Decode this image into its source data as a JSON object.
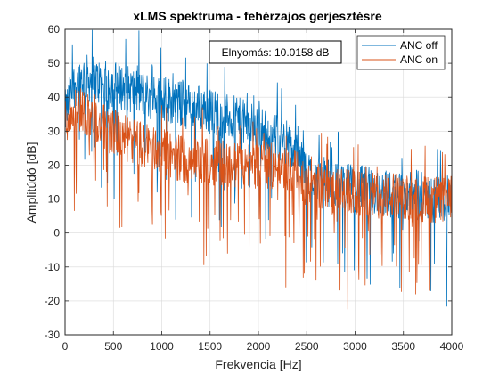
{
  "chart_data": {
    "type": "line",
    "title": "xLMS spektruma - fehérzajos gerjesztésre",
    "xlabel": "Frekvencia [Hz]",
    "ylabel": "Amplitúdó [dB]",
    "xlim": [
      0,
      4000
    ],
    "ylim": [
      -30,
      60
    ],
    "xticks": [
      "0",
      "500",
      "1000",
      "1500",
      "2000",
      "2500",
      "3000",
      "3500",
      "4000"
    ],
    "yticks": [
      "-30",
      "-20",
      "-10",
      "0",
      "10",
      "20",
      "30",
      "40",
      "50",
      "60"
    ],
    "grid": true,
    "legend_position": "top-right",
    "annotation": "Elnyomás: 10.0158 dB",
    "series": [
      {
        "name": "ANC off",
        "color": "#0072BD",
        "x": [
          0,
          100,
          200,
          300,
          400,
          500,
          600,
          700,
          800,
          900,
          1000,
          1100,
          1200,
          1300,
          1400,
          1500,
          1600,
          1700,
          1800,
          1900,
          2000,
          2100,
          2200,
          2300,
          2400,
          2500,
          2600,
          2700,
          2800,
          2900,
          3000,
          3100,
          3200,
          3300,
          3400,
          3500,
          3600,
          3700,
          3800,
          3900,
          4000
        ],
        "values": [
          35,
          44,
          46,
          45,
          44,
          44,
          43,
          42,
          41,
          40,
          40,
          39,
          38,
          37,
          37,
          36,
          35,
          34,
          33,
          32,
          31,
          29,
          28,
          27,
          22,
          18,
          16,
          15,
          14,
          14,
          13,
          13,
          12,
          12,
          11,
          11,
          11,
          10,
          10,
          10,
          10
        ]
      },
      {
        "name": "ANC on",
        "color": "#D95319",
        "x": [
          0,
          100,
          200,
          300,
          400,
          500,
          600,
          700,
          800,
          900,
          1000,
          1100,
          1200,
          1300,
          1400,
          1500,
          1600,
          1700,
          1800,
          1900,
          2000,
          2100,
          2200,
          2300,
          2400,
          2500,
          2600,
          2700,
          2800,
          2900,
          3000,
          3100,
          3200,
          3300,
          3400,
          3500,
          3600,
          3700,
          3800,
          3900,
          4000
        ],
        "values": [
          33,
          37,
          36,
          33,
          31,
          30,
          28,
          27,
          26,
          25,
          24,
          23,
          22,
          22,
          21,
          21,
          21,
          20,
          20,
          20,
          20,
          20,
          19,
          19,
          17,
          15,
          14,
          13,
          12,
          12,
          12,
          11,
          11,
          11,
          11,
          10,
          10,
          10,
          10,
          10,
          10
        ]
      }
    ]
  }
}
